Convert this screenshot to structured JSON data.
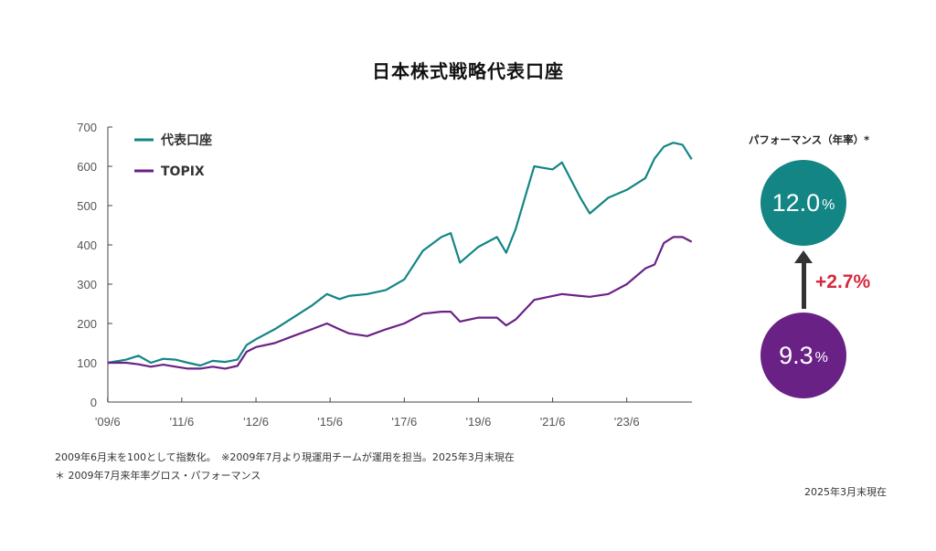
{
  "title": "日本株式戦略代表口座",
  "chart_data": {
    "type": "line",
    "title": "日本株式戦略代表口座",
    "ylim": [
      0,
      700
    ],
    "yticks": [
      "0",
      "100",
      "200",
      "300",
      "400",
      "500",
      "600",
      "700"
    ],
    "xticks": [
      "'09/6",
      "'11/6",
      "'12/6",
      "'15/6",
      "'17/6",
      "'19/6",
      "'21/6",
      "'23/6"
    ],
    "grid": false,
    "legend_position": "top-left",
    "x": [
      "2009-06",
      "2009-12",
      "2010-04",
      "2010-08",
      "2010-12",
      "2011-04",
      "2011-08",
      "2011-12",
      "2012-04",
      "2012-08",
      "2012-12",
      "2013-03",
      "2013-06",
      "2013-12",
      "2014-06",
      "2014-12",
      "2015-05",
      "2015-09",
      "2015-12",
      "2016-06",
      "2016-12",
      "2017-06",
      "2017-12",
      "2018-06",
      "2018-09",
      "2018-12",
      "2019-06",
      "2019-12",
      "2020-03",
      "2020-06",
      "2020-12",
      "2021-06",
      "2021-09",
      "2022-03",
      "2022-06",
      "2022-12",
      "2023-06",
      "2023-12",
      "2024-03",
      "2024-06",
      "2024-09",
      "2024-12",
      "2025-03"
    ],
    "series": [
      {
        "name": "代表口座",
        "color": "#138585",
        "values": [
          100,
          108,
          118,
          100,
          110,
          108,
          100,
          93,
          105,
          102,
          108,
          145,
          160,
          185,
          215,
          245,
          275,
          262,
          270,
          275,
          285,
          312,
          385,
          420,
          430,
          355,
          395,
          420,
          380,
          440,
          600,
          592,
          610,
          520,
          480,
          520,
          540,
          570,
          620,
          650,
          660,
          655,
          618
        ]
      },
      {
        "name": "TOPIX",
        "color": "#6a2186",
        "values": [
          100,
          100,
          96,
          90,
          95,
          90,
          85,
          85,
          90,
          85,
          92,
          128,
          140,
          150,
          168,
          185,
          200,
          185,
          175,
          168,
          185,
          200,
          225,
          230,
          230,
          205,
          215,
          215,
          195,
          210,
          260,
          270,
          275,
          270,
          268,
          275,
          300,
          340,
          350,
          405,
          420,
          420,
          408
        ]
      }
    ]
  },
  "performance": {
    "title": "パフォーマンス（年率）*",
    "account_value": "12.0",
    "account_unit": "%",
    "account_color": "#138585",
    "topix_value": "9.3",
    "topix_unit": "%",
    "topix_color": "#6a2186",
    "difference": "+2.7%",
    "difference_color": "#d6283c"
  },
  "notes": {
    "line1": "2009年6月末を100として指数化。　※2009年7月より現運用チームが運用を担当。2025年3月末現在",
    "line2": "＊ 2009年7月来年率グロス・パフォーマンス"
  },
  "as_of": "2025年3月末現在"
}
